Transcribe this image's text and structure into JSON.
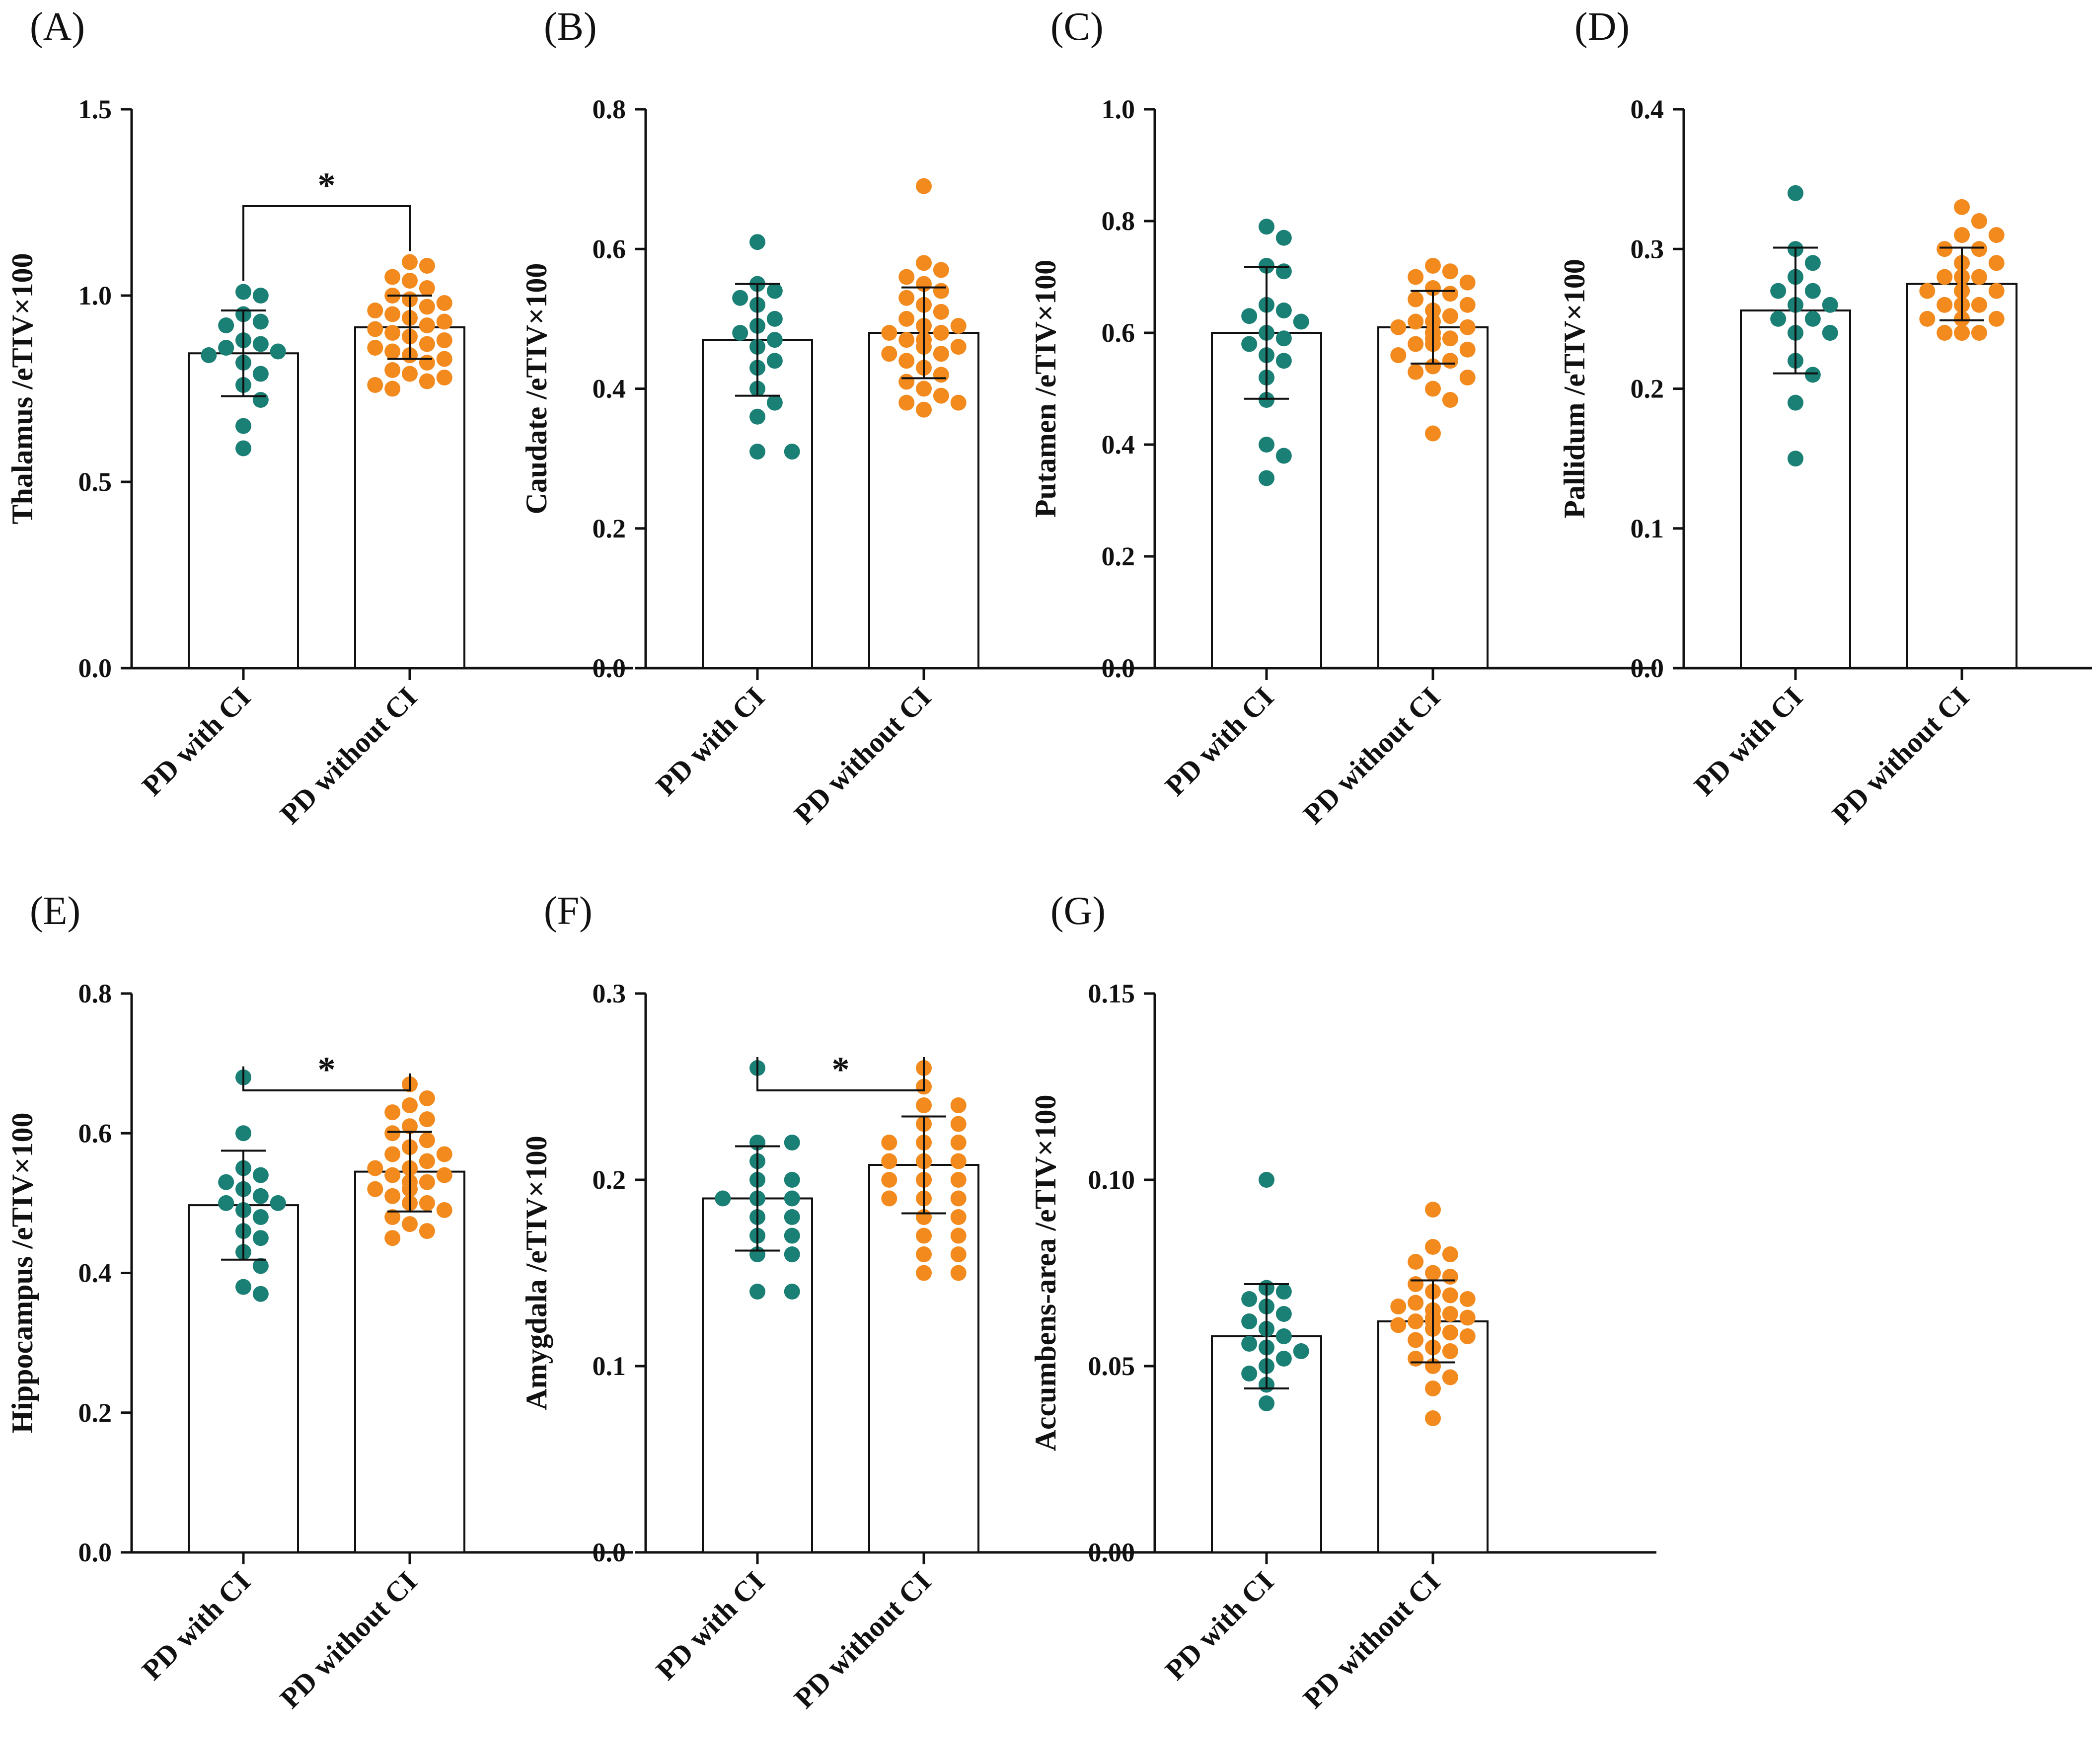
{
  "figure": {
    "groups": [
      "PD with CI",
      "PD without CI"
    ],
    "colors": {
      "with_ci": "#1a7f74",
      "without_ci": "#f28a1e",
      "axis": "#111111",
      "bar_fill": "#ffffff"
    }
  },
  "chart_data": [
    {
      "panel": "(A)",
      "type": "bar",
      "ylabel": "Thalamus /eTIV×100",
      "categories": [
        "PD with CI",
        "PD without CI"
      ],
      "ylim": [
        0,
        1.5
      ],
      "yticks": [
        0.0,
        0.5,
        1.0,
        1.5
      ],
      "tick_labels": [
        "0.0",
        "0.5",
        "1.0",
        "1.5"
      ],
      "significance": "*",
      "series": [
        {
          "name": "PD with CI",
          "mean": 0.845,
          "sd": 0.115,
          "points": [
            1.01,
            1.0,
            0.95,
            0.93,
            0.92,
            0.88,
            0.87,
            0.86,
            0.85,
            0.84,
            0.82,
            0.79,
            0.76,
            0.72,
            0.65,
            0.59
          ]
        },
        {
          "name": "PD without CI",
          "mean": 0.915,
          "sd": 0.085,
          "points": [
            1.09,
            1.08,
            1.05,
            1.04,
            1.02,
            1.0,
            0.99,
            0.98,
            0.97,
            0.96,
            0.95,
            0.94,
            0.93,
            0.92,
            0.91,
            0.9,
            0.89,
            0.88,
            0.87,
            0.86,
            0.85,
            0.84,
            0.83,
            0.82,
            0.8,
            0.79,
            0.78,
            0.77,
            0.76,
            0.75
          ]
        }
      ]
    },
    {
      "panel": "(B)",
      "type": "bar",
      "ylabel": "Caudate /eTIV×100",
      "categories": [
        "PD with CI",
        "PD without CI"
      ],
      "ylim": [
        0,
        0.8
      ],
      "yticks": [
        0.0,
        0.2,
        0.4,
        0.6,
        0.8
      ],
      "tick_labels": [
        "0.0",
        "0.2",
        "0.4",
        "0.6",
        "0.8"
      ],
      "significance": "",
      "series": [
        {
          "name": "PD with CI",
          "mean": 0.47,
          "sd": 0.08,
          "points": [
            0.61,
            0.55,
            0.54,
            0.53,
            0.52,
            0.5,
            0.49,
            0.48,
            0.47,
            0.46,
            0.44,
            0.43,
            0.4,
            0.38,
            0.36,
            0.31,
            0.31
          ]
        },
        {
          "name": "PD without CI",
          "mean": 0.48,
          "sd": 0.065,
          "points": [
            0.69,
            0.58,
            0.57,
            0.56,
            0.55,
            0.54,
            0.53,
            0.52,
            0.51,
            0.5,
            0.49,
            0.49,
            0.48,
            0.48,
            0.47,
            0.47,
            0.46,
            0.46,
            0.45,
            0.45,
            0.44,
            0.43,
            0.42,
            0.41,
            0.4,
            0.39,
            0.38,
            0.38,
            0.37
          ]
        }
      ]
    },
    {
      "panel": "(C)",
      "type": "bar",
      "ylabel": "Putamen /eTIV×100",
      "categories": [
        "PD with CI",
        "PD without CI"
      ],
      "ylim": [
        0,
        1.0
      ],
      "yticks": [
        0.0,
        0.2,
        0.4,
        0.6,
        0.8,
        1.0
      ],
      "tick_labels": [
        "0.0",
        "0.2",
        "0.4",
        "0.6",
        "0.8",
        "1.0"
      ],
      "significance": "",
      "series": [
        {
          "name": "PD with CI",
          "mean": 0.6,
          "sd": 0.118,
          "points": [
            0.79,
            0.77,
            0.72,
            0.71,
            0.65,
            0.64,
            0.63,
            0.62,
            0.6,
            0.59,
            0.58,
            0.56,
            0.55,
            0.52,
            0.48,
            0.4,
            0.38,
            0.34
          ]
        },
        {
          "name": "PD without CI",
          "mean": 0.61,
          "sd": 0.065,
          "points": [
            0.72,
            0.71,
            0.7,
            0.69,
            0.68,
            0.67,
            0.66,
            0.65,
            0.64,
            0.63,
            0.62,
            0.62,
            0.61,
            0.61,
            0.6,
            0.6,
            0.59,
            0.59,
            0.58,
            0.58,
            0.57,
            0.56,
            0.55,
            0.54,
            0.53,
            0.52,
            0.5,
            0.48,
            0.42
          ]
        }
      ]
    },
    {
      "panel": "(D)",
      "type": "bar",
      "ylabel": "Pallidum /eTIV×100",
      "categories": [
        "PD with CI",
        "PD without CI"
      ],
      "ylim": [
        0,
        0.4
      ],
      "yticks": [
        0.0,
        0.1,
        0.2,
        0.3,
        0.4
      ],
      "tick_labels": [
        "0.0",
        "0.1",
        "0.2",
        "0.3",
        "0.4"
      ],
      "significance": "",
      "series": [
        {
          "name": "PD with CI",
          "mean": 0.256,
          "sd": 0.045,
          "points": [
            0.34,
            0.3,
            0.29,
            0.28,
            0.27,
            0.27,
            0.26,
            0.26,
            0.25,
            0.25,
            0.24,
            0.24,
            0.22,
            0.21,
            0.19,
            0.15
          ]
        },
        {
          "name": "PD without CI",
          "mean": 0.275,
          "sd": 0.026,
          "points": [
            0.33,
            0.32,
            0.31,
            0.31,
            0.3,
            0.3,
            0.29,
            0.29,
            0.28,
            0.28,
            0.28,
            0.27,
            0.27,
            0.27,
            0.27,
            0.26,
            0.26,
            0.26,
            0.26,
            0.25,
            0.25,
            0.25,
            0.24,
            0.24,
            0.24,
            0.24
          ]
        }
      ]
    },
    {
      "panel": "(E)",
      "type": "bar",
      "ylabel": "Hippocampus /eTIV×100",
      "categories": [
        "PD with CI",
        "PD without CI"
      ],
      "ylim": [
        0,
        0.8
      ],
      "yticks": [
        0.0,
        0.2,
        0.4,
        0.6,
        0.8
      ],
      "tick_labels": [
        "0.0",
        "0.2",
        "0.4",
        "0.6",
        "0.8"
      ],
      "significance": "*",
      "series": [
        {
          "name": "PD with CI",
          "mean": 0.497,
          "sd": 0.078,
          "points": [
            0.68,
            0.6,
            0.55,
            0.54,
            0.53,
            0.52,
            0.51,
            0.5,
            0.5,
            0.49,
            0.48,
            0.46,
            0.45,
            0.43,
            0.41,
            0.38,
            0.37
          ]
        },
        {
          "name": "PD without CI",
          "mean": 0.545,
          "sd": 0.057,
          "points": [
            0.67,
            0.65,
            0.64,
            0.63,
            0.62,
            0.61,
            0.6,
            0.59,
            0.58,
            0.57,
            0.57,
            0.56,
            0.55,
            0.55,
            0.54,
            0.54,
            0.53,
            0.53,
            0.52,
            0.52,
            0.51,
            0.5,
            0.5,
            0.49,
            0.48,
            0.47,
            0.46,
            0.45
          ]
        }
      ]
    },
    {
      "panel": "(F)",
      "type": "bar",
      "ylabel": "Amygdala /eTIV×100",
      "categories": [
        "PD with CI",
        "PD without CI"
      ],
      "ylim": [
        0,
        0.3
      ],
      "yticks": [
        0.0,
        0.1,
        0.2,
        0.3
      ],
      "tick_labels": [
        "0.0",
        "0.1",
        "0.2",
        "0.3"
      ],
      "significance": "*",
      "series": [
        {
          "name": "PD with CI",
          "mean": 0.19,
          "sd": 0.028,
          "points": [
            0.26,
            0.22,
            0.22,
            0.21,
            0.2,
            0.2,
            0.19,
            0.19,
            0.19,
            0.18,
            0.18,
            0.17,
            0.17,
            0.16,
            0.16,
            0.14,
            0.14
          ]
        },
        {
          "name": "PD without CI",
          "mean": 0.208,
          "sd": 0.026,
          "points": [
            0.26,
            0.25,
            0.24,
            0.24,
            0.23,
            0.23,
            0.22,
            0.22,
            0.22,
            0.21,
            0.21,
            0.21,
            0.21,
            0.2,
            0.2,
            0.2,
            0.2,
            0.19,
            0.19,
            0.19,
            0.18,
            0.18,
            0.17,
            0.17,
            0.16,
            0.16,
            0.15,
            0.15
          ]
        }
      ]
    },
    {
      "panel": "(G)",
      "type": "bar",
      "ylabel": "Accumbens-area /eTIV×100",
      "categories": [
        "PD with CI",
        "PD without CI"
      ],
      "ylim": [
        0,
        0.15
      ],
      "yticks": [
        0.0,
        0.05,
        0.1,
        0.15
      ],
      "tick_labels": [
        "0.00",
        "0.05",
        "0.10",
        "0.15"
      ],
      "significance": "",
      "series": [
        {
          "name": "PD with CI",
          "mean": 0.058,
          "sd": 0.014,
          "points": [
            0.1,
            0.071,
            0.07,
            0.068,
            0.066,
            0.064,
            0.062,
            0.06,
            0.058,
            0.056,
            0.055,
            0.054,
            0.052,
            0.05,
            0.048,
            0.045,
            0.04
          ]
        },
        {
          "name": "PD without CI",
          "mean": 0.062,
          "sd": 0.011,
          "points": [
            0.092,
            0.082,
            0.08,
            0.078,
            0.075,
            0.074,
            0.072,
            0.07,
            0.069,
            0.068,
            0.067,
            0.066,
            0.065,
            0.064,
            0.063,
            0.063,
            0.062,
            0.062,
            0.061,
            0.06,
            0.06,
            0.059,
            0.058,
            0.057,
            0.055,
            0.054,
            0.052,
            0.05,
            0.047,
            0.044,
            0.036
          ]
        }
      ]
    }
  ]
}
